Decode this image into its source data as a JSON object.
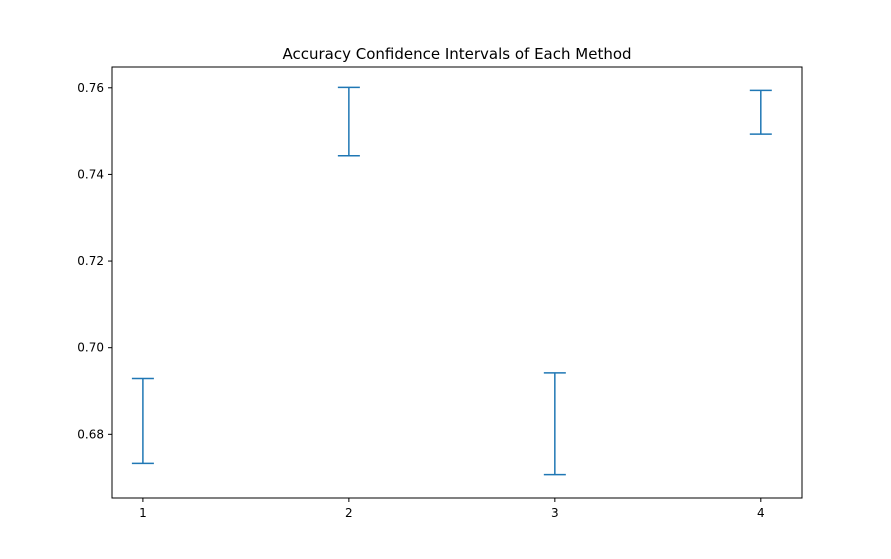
{
  "chart_data": {
    "type": "errorbar",
    "title": "Accuracy Confidence Intervals of Each Method",
    "xlabel": "",
    "ylabel": "",
    "x": [
      1,
      2,
      3,
      4
    ],
    "x_tick_labels": [
      "1",
      "2",
      "3",
      "4"
    ],
    "intervals": [
      {
        "x": 1,
        "low": 0.6733,
        "high": 0.6929
      },
      {
        "x": 2,
        "low": 0.7443,
        "high": 0.7601
      },
      {
        "x": 3,
        "low": 0.6707,
        "high": 0.6942
      },
      {
        "x": 4,
        "low": 0.7493,
        "high": 0.7594
      }
    ],
    "y_ticks": [
      0.68,
      0.7,
      0.72,
      0.74,
      0.76
    ],
    "y_tick_labels": [
      "0.68",
      "0.70",
      "0.72",
      "0.74",
      "0.76"
    ],
    "xlim": [
      0.85,
      4.2
    ],
    "ylim": [
      0.6653,
      0.7648
    ],
    "grid": false,
    "color": "#1f77b4"
  }
}
